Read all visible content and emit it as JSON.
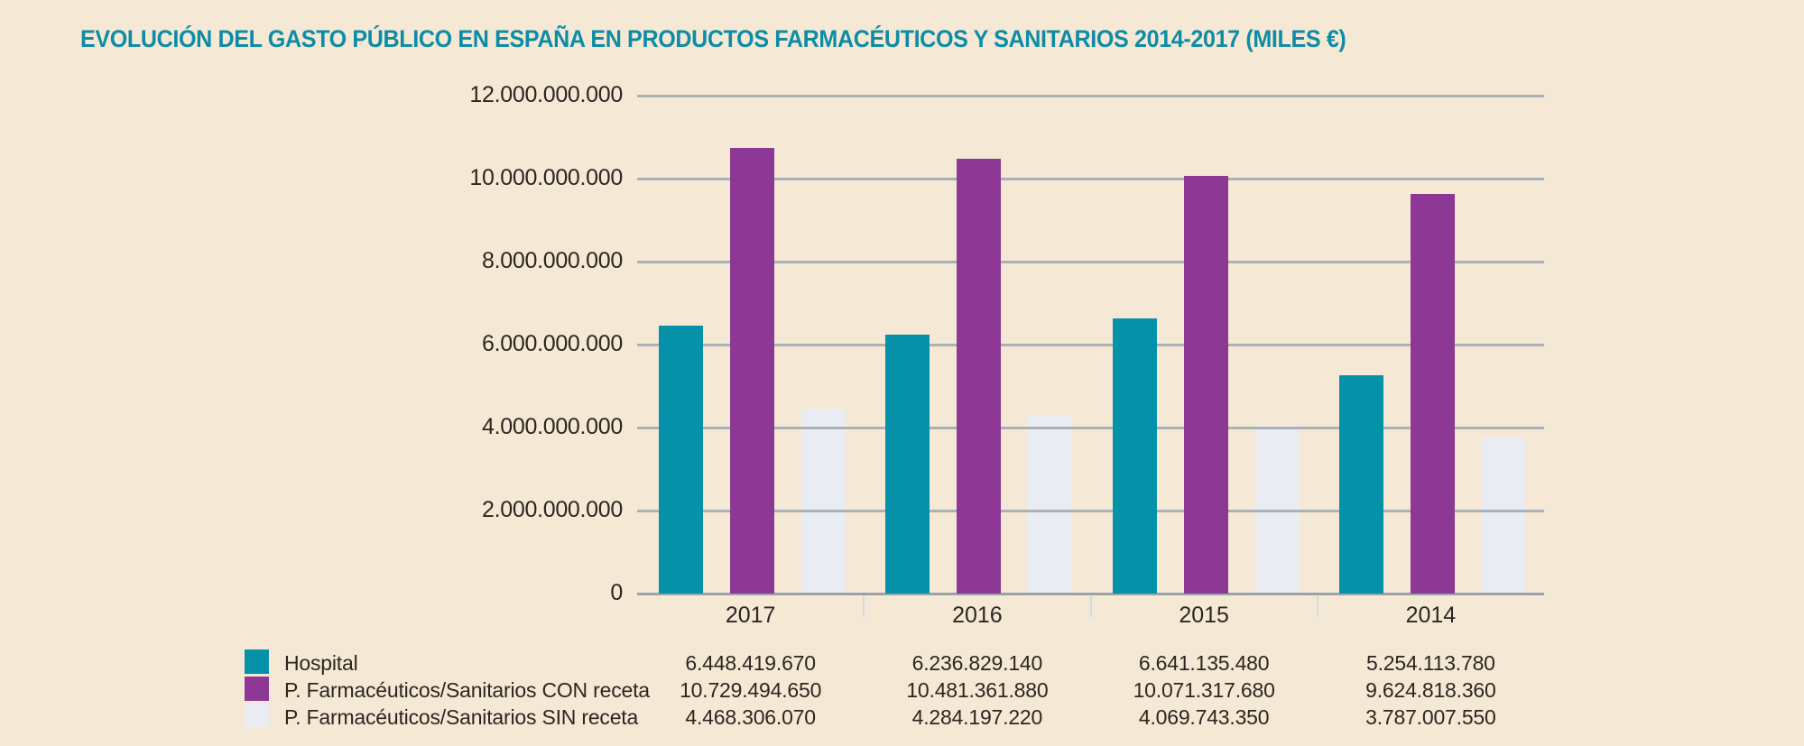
{
  "page": {
    "background_color": "#f5e9d5"
  },
  "chart_data": {
    "type": "bar",
    "title": "EVOLUCIÓN DEL GASTO PÚBLICO EN ESPAÑA EN PRODUCTOS FARMACÉUTICOS Y SANITARIOS 2014-2017 (MILES €)",
    "title_color": "#0e8ca6",
    "categories": [
      "2017",
      "2016",
      "2015",
      "2014"
    ],
    "series": [
      {
        "name": "Hospital",
        "key": "hospital",
        "color": "#0591a8",
        "values": [
          6448419670,
          6236829140,
          6641135480,
          5254113780
        ],
        "formatted": [
          "6.448.419.670",
          "6.236.829.140",
          "6.641.135.480",
          "5.254.113.780"
        ]
      },
      {
        "name": "P. Farmacéuticos/Sanitarios CON receta",
        "key": "con-receta",
        "color": "#8d3895",
        "values": [
          10729494650,
          10481361880,
          10071317680,
          9624818360
        ],
        "formatted": [
          "10.729.494.650",
          "10.481.361.880",
          "10.071.317.680",
          "9.624.818.360"
        ]
      },
      {
        "name": "P. Farmacéuticos/Sanitarios SIN receta",
        "key": "sin-receta",
        "color": "#e9edf3",
        "values": [
          4468306070,
          4284197220,
          4069743350,
          3787007550
        ],
        "formatted": [
          "4.468.306.070",
          "4.284.197.220",
          "4.069.743.350",
          "3.787.007.550"
        ]
      }
    ],
    "ylim": [
      0,
      12000000000
    ],
    "yticks": [
      12000000000,
      10000000000,
      8000000000,
      6000000000,
      4000000000,
      2000000000,
      0
    ],
    "ytick_labels": [
      "12.000.000.000",
      "10.000.000.000",
      "8.000.000.000",
      "6.000.000.000",
      "4.000.000.000",
      "2.000.000.000",
      "0"
    ],
    "grid": true,
    "legend_position": "bottom-table",
    "colors": {
      "gridline": "#a9b1b9",
      "axis": "#9aa2aa",
      "category_tick": "#cddde3",
      "text": "#2d2620",
      "background": "#f5e9d5"
    }
  }
}
